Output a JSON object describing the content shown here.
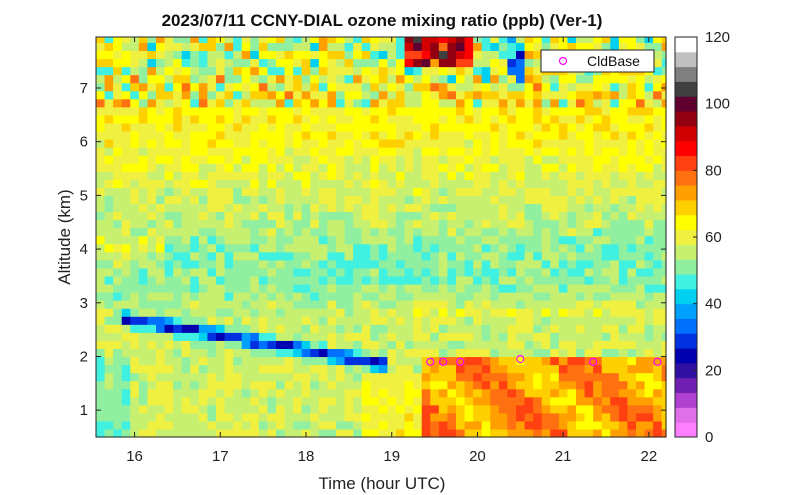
{
  "chart_data": {
    "type": "heatmap",
    "title": "2023/07/11 CCNY-DIAL ozone mixing ratio (ppb) (Ver-1)",
    "xlabel": "Time (hour UTC)",
    "ylabel": "Altitude (km)",
    "xlim": [
      15.55,
      22.2
    ],
    "ylim": [
      0.5,
      7.95
    ],
    "x_ticks": [
      16,
      17,
      18,
      19,
      20,
      21,
      22
    ],
    "y_ticks": [
      1,
      2,
      3,
      4,
      5,
      6,
      7
    ],
    "colorbar": {
      "min": 0,
      "max": 120,
      "ticks": [
        0,
        20,
        40,
        60,
        80,
        100,
        120
      ],
      "colormap": [
        "#ff80ff",
        "#e070e8",
        "#b040d0",
        "#7020b0",
        "#3010a0",
        "#0000b0",
        "#0030e0",
        "#0070ff",
        "#00a0ff",
        "#00d0f0",
        "#40f0e0",
        "#90f0a0",
        "#c8f070",
        "#f0f040",
        "#ffff00",
        "#ffd000",
        "#ffa000",
        "#ff7010",
        "#ff4010",
        "#ff0000",
        "#d00000",
        "#900010",
        "#600030",
        "#404040",
        "#808080",
        "#c0c0c0",
        "#ffffff"
      ]
    },
    "legend": {
      "entries": [
        "CldBase"
      ],
      "placement": "top-right",
      "marker_color": "#ff00ff"
    },
    "cloud_base": {
      "x": [
        19.45,
        19.6,
        19.8,
        20.5,
        21.35,
        22.1
      ],
      "y": [
        1.9,
        1.9,
        1.9,
        1.95,
        1.9,
        1.9
      ]
    },
    "grid": {
      "time_start": 15.55,
      "time_step": 0.1,
      "alt_start": 0.5,
      "alt_step": 0.15
    }
  }
}
